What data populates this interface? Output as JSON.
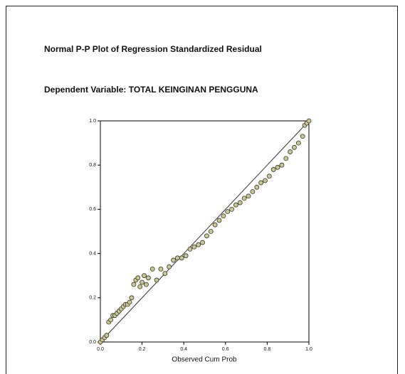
{
  "chart_data": {
    "type": "scatter",
    "title": "Normal P-P Plot of Regression Standardized Residual",
    "subtitle": "Dependent Variable: TOTAL KEINGINAN PENGGUNA",
    "x_label": "Observed  Cum Prob",
    "series": [
      {
        "color": "#c9c98e",
        "x": [
          0,
          0.01,
          0.02,
          0.03,
          0.04,
          0.05,
          0.06,
          0.07,
          0.08,
          0.09,
          0.1,
          0.11,
          0.12,
          0.13,
          0.14,
          0.15,
          0.16,
          0.17,
          0.18,
          0.19,
          0.2,
          0.21,
          0.22,
          0.23,
          0.25,
          0.27,
          0.29,
          0.31,
          0.33,
          0.35,
          0.37,
          0.39,
          0.41,
          0.43,
          0.45,
          0.47,
          0.49,
          0.51,
          0.53,
          0.55,
          0.57,
          0.59,
          0.61,
          0.63,
          0.65,
          0.67,
          0.69,
          0.71,
          0.73,
          0.75,
          0.77,
          0.79,
          0.81,
          0.83,
          0.85,
          0.87,
          0.89,
          0.91,
          0.93,
          0.95,
          0.97,
          0.98,
          0.99,
          1.0
        ],
        "values": [
          0,
          0.01,
          0.02,
          0.03,
          0.09,
          0.1,
          0.12,
          0.12,
          0.13,
          0.14,
          0.15,
          0.16,
          0.17,
          0.17,
          0.18,
          0.2,
          0.26,
          0.28,
          0.29,
          0.25,
          0.27,
          0.3,
          0.26,
          0.29,
          0.33,
          0.28,
          0.33,
          0.31,
          0.34,
          0.37,
          0.38,
          0.38,
          0.39,
          0.42,
          0.43,
          0.44,
          0.45,
          0.48,
          0.5,
          0.53,
          0.55,
          0.57,
          0.59,
          0.6,
          0.62,
          0.63,
          0.65,
          0.66,
          0.68,
          0.7,
          0.72,
          0.73,
          0.75,
          0.78,
          0.79,
          0.8,
          0.83,
          0.86,
          0.88,
          0.9,
          0.93,
          0.98,
          0.99,
          1.0
        ]
      }
    ],
    "xlim": [
      0,
      1
    ],
    "ylim": [
      0,
      1
    ],
    "xticks": [
      {
        "value": 0,
        "label": "0.0"
      },
      0.2,
      0.4,
      0.6,
      0.8,
      {
        "value": 1,
        "label": "1.0"
      }
    ],
    "yticks": [
      {
        "value": 0,
        "label": "0.0"
      },
      0.2,
      0.4,
      0.6,
      0.8,
      {
        "value": 1,
        "label": "1.0"
      }
    ],
    "reference_line": true
  }
}
